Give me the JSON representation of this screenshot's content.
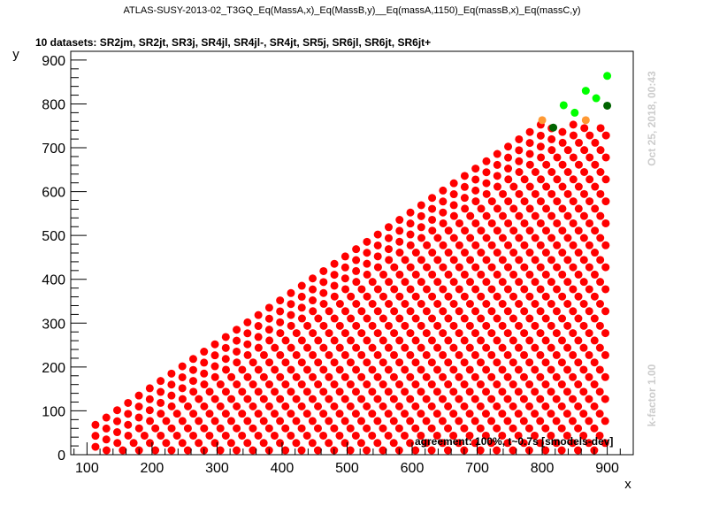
{
  "chart_data": {
    "type": "scatter",
    "title": "ATLAS-SUSY-2013-02_T3GQ_Eq(MassA,x)_Eq(MassB,y)__Eq(massA,1150)_Eq(massB,x)_Eq(massC,y)",
    "subtitle": "10 datasets: SR2jm, SR2jt, SR3j, SR4jl, SR4jl-, SR4jt, SR5j, SR6jl, SR6jt, SR6jt+",
    "xlabel": "x",
    "ylabel": "y",
    "xlim": [
      75,
      940
    ],
    "ylim": [
      0,
      920
    ],
    "xticks": [
      100,
      200,
      300,
      400,
      500,
      600,
      700,
      800,
      900
    ],
    "yticks": [
      0,
      100,
      200,
      300,
      400,
      500,
      600,
      700,
      800,
      900
    ],
    "grid": false,
    "timestamp": "Oct 25, 2018, 00:43",
    "kfactor": "k-factor 1.00",
    "agreement": "agreement: 100%, t~0.7s [smodels-dev]",
    "colors": {
      "excluded": "#ff0000",
      "allowed": "#00ff00",
      "allowed_border": "#006400",
      "excluded_border": "#ff9933"
    },
    "grid_points": {
      "excluded": {
        "rule": "red points lie on diagonals y = x - c, for c in offsets, from y = first_y up to x = 900, with x stepping by 16.7",
        "x_step": 16.7,
        "offsets": [
          45,
          70,
          95,
          120,
          145,
          170,
          195,
          220,
          245,
          270,
          295,
          320,
          345,
          370,
          395,
          420,
          445,
          470,
          495,
          520,
          545,
          570,
          595,
          620,
          645,
          670,
          695,
          720,
          745,
          770,
          795,
          820,
          845,
          870
        ],
        "x_start": 113,
        "y_min": 10
      }
    },
    "special_points": [
      {
        "x": 800,
        "y": 763,
        "status": "excluded_border"
      },
      {
        "x": 867,
        "y": 763,
        "status": "excluded_border"
      },
      {
        "x": 817,
        "y": 746,
        "status": "allowed_border"
      },
      {
        "x": 900,
        "y": 796,
        "status": "allowed_border"
      },
      {
        "x": 833,
        "y": 797,
        "status": "allowed"
      },
      {
        "x": 850,
        "y": 780,
        "status": "allowed"
      },
      {
        "x": 867,
        "y": 830,
        "status": "allowed"
      },
      {
        "x": 883,
        "y": 813,
        "status": "allowed"
      },
      {
        "x": 900,
        "y": 864,
        "status": "allowed"
      }
    ]
  }
}
